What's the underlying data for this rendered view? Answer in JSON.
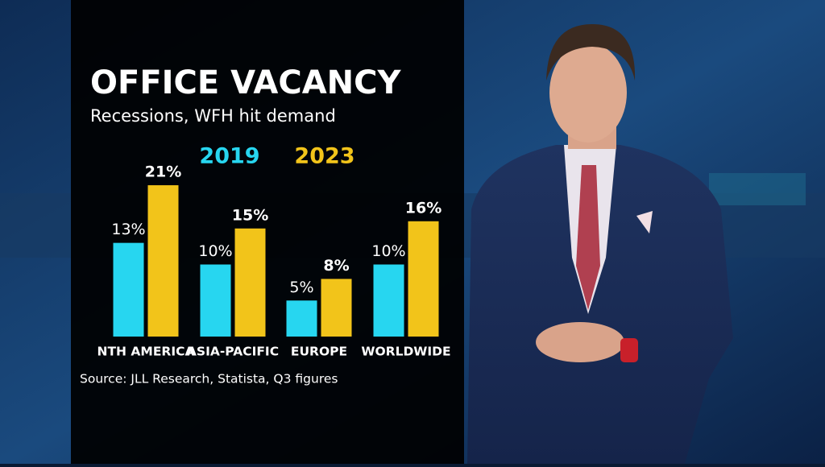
{
  "chart_data": {
    "type": "bar",
    "title": "OFFICE VACANCY",
    "subtitle": "Recessions, WFH hit demand",
    "source": "Source: JLL Research, Statista, Q3 figures",
    "categories": [
      "NTH AMERICA",
      "ASIA-PACIFIC",
      "EUROPE",
      "WORLDWIDE"
    ],
    "series": [
      {
        "name": "2019",
        "color": "#27d6f0",
        "values": [
          13,
          10,
          5,
          10
        ],
        "value_labels": [
          "13%",
          "10%",
          "5%",
          "10%"
        ]
      },
      {
        "name": "2023",
        "color": "#f2c41a",
        "values": [
          21,
          15,
          8,
          16
        ],
        "value_labels": [
          "21%",
          "15%",
          "8%",
          "16%"
        ]
      }
    ]
  }
}
